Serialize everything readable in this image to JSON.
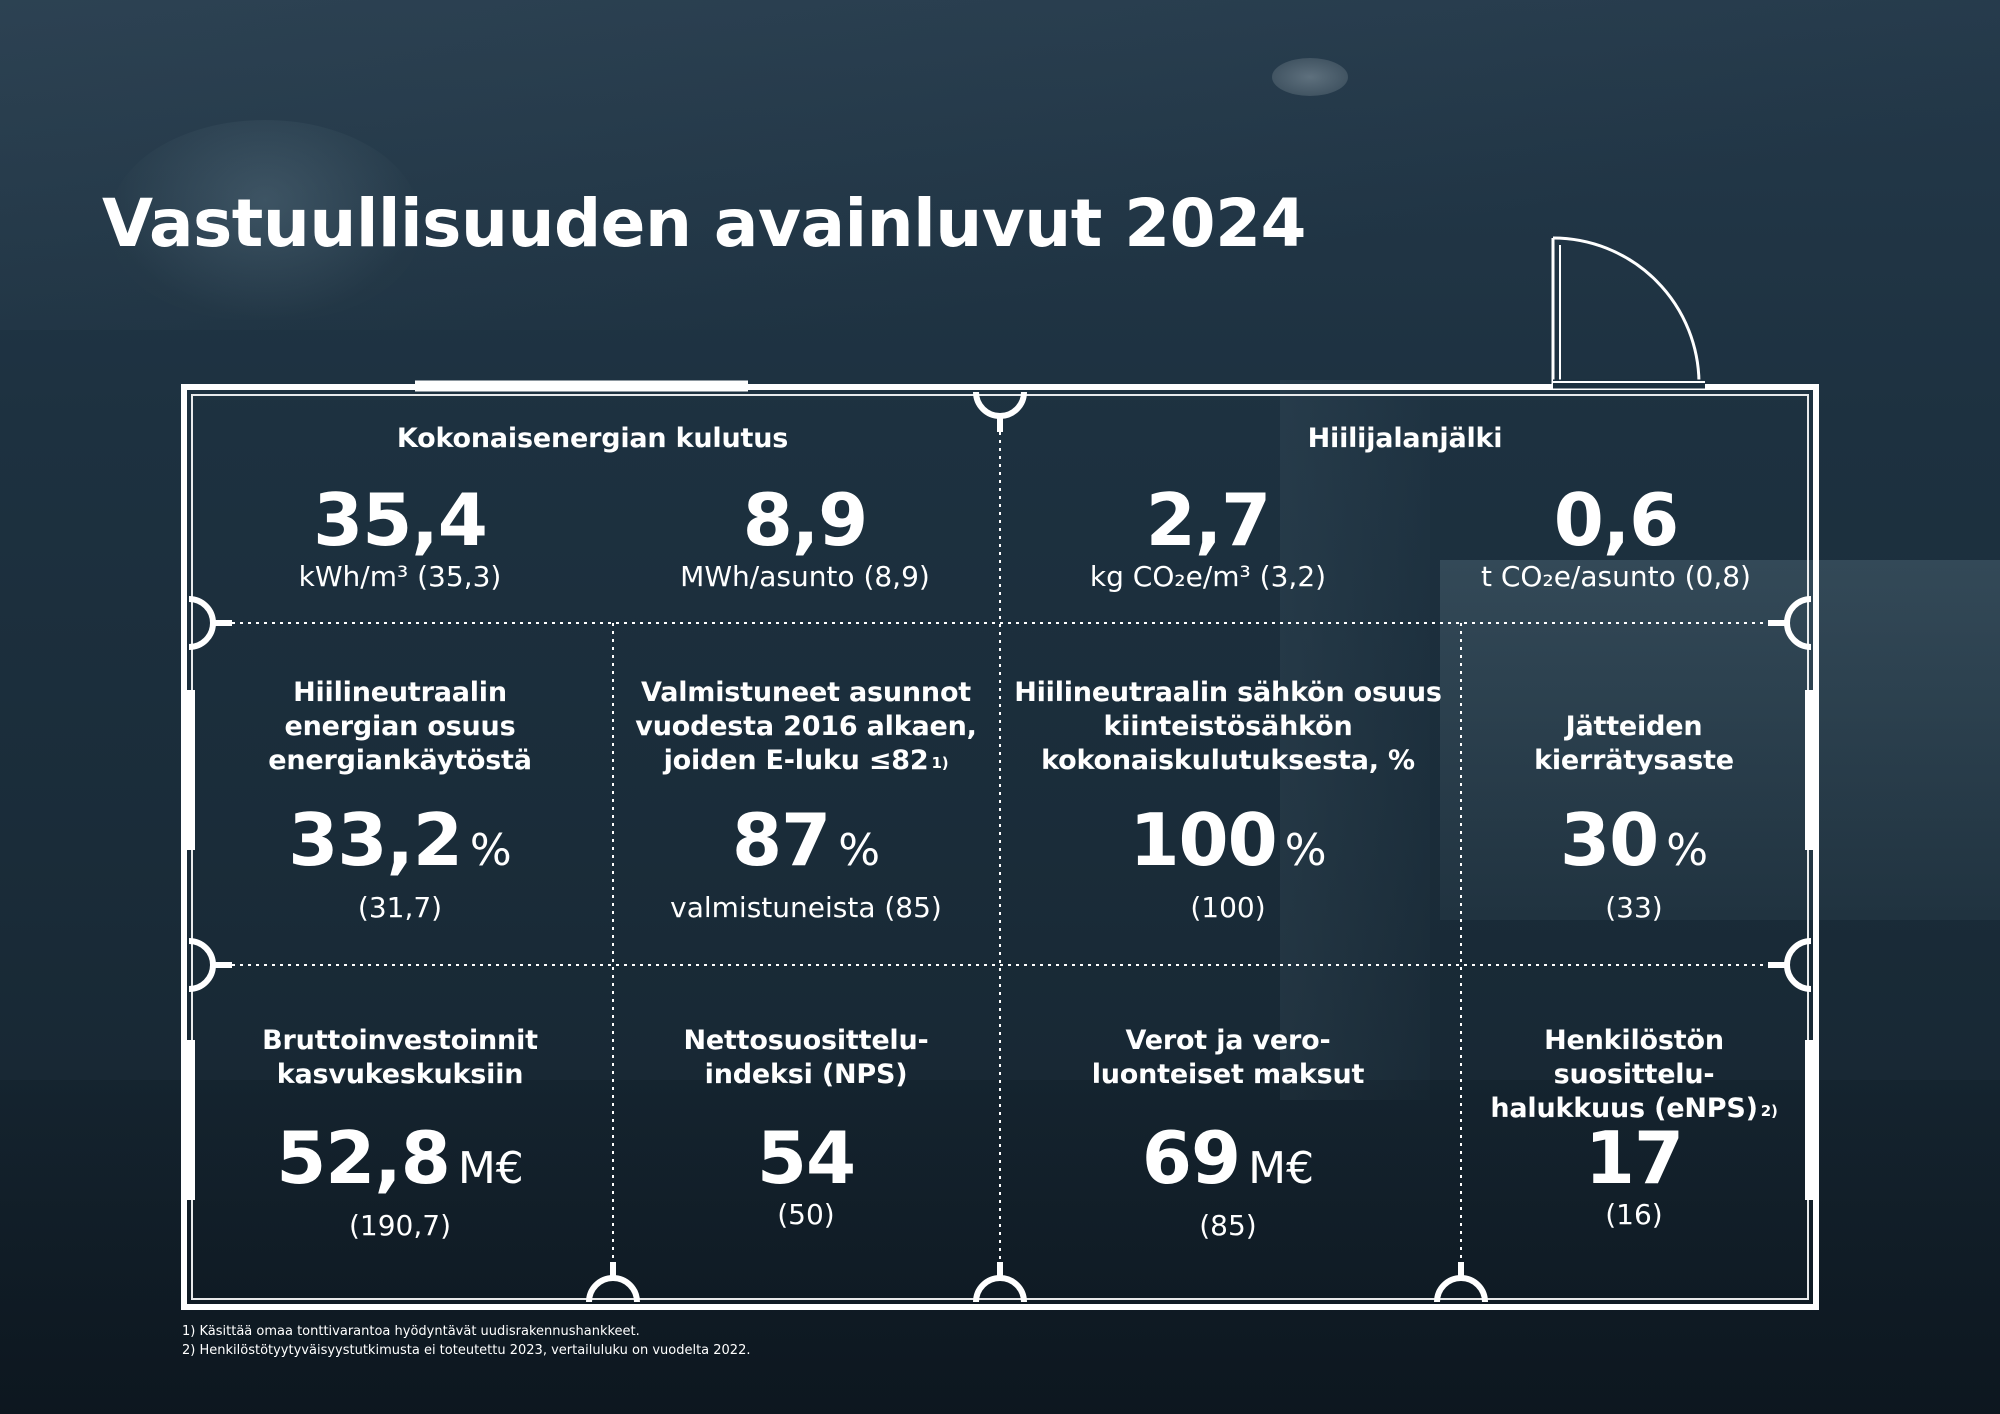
{
  "title": "Vastuullisuuden avainluvut 2024",
  "sections": {
    "energy": "Kokonaisenergian kulutus",
    "carbon": "Hiilijalanjälki"
  },
  "top": [
    {
      "value": "35,4",
      "sub": "kWh/m³ (35,3)"
    },
    {
      "value": "8,9",
      "sub": "MWh/asunto (8,9)"
    },
    {
      "value": "2,7",
      "sub": "kg CO₂e/m³ (3,2)"
    },
    {
      "value": "0,6",
      "sub": "t CO₂e/asunto (0,8)"
    }
  ],
  "middle": [
    {
      "label": [
        "Hiilineutraalin",
        "energian osuus",
        "energiankäytöstä"
      ],
      "value": "33,2",
      "unit": "%",
      "sub": "(31,7)"
    },
    {
      "label": [
        "Valmistuneet asunnot",
        "vuodesta 2016 alkaen,",
        "joiden E-luku ≤82"
      ],
      "note": "1)",
      "value": "87",
      "unit": "%",
      "sub": "valmistuneista (85)"
    },
    {
      "label": [
        "Hiilineutraalin sähkön osuus",
        "kiinteistösähkön",
        "kokonaiskulutuksesta, %"
      ],
      "value": "100",
      "unit": "%",
      "sub": "(100)"
    },
    {
      "label": [
        "Jätteiden",
        "kierrätysaste"
      ],
      "value": "30",
      "unit": "%",
      "sub": "(33)"
    }
  ],
  "bottom": [
    {
      "label": [
        "Bruttoinvestoinnit",
        "kasvukeskuksiin"
      ],
      "value": "52,8",
      "unit": "M€",
      "sub": "(190,7)"
    },
    {
      "label": [
        "Nettosuosittelu-",
        "indeksi (NPS)"
      ],
      "value": "54",
      "unit": "",
      "sub": "(50)"
    },
    {
      "label": [
        "Verot ja vero-",
        "luonteiset maksut"
      ],
      "value": "69",
      "unit": "M€",
      "sub": "(85)"
    },
    {
      "label": [
        "Henkilöstön suosittelu-",
        "halukkuus (eNPS)"
      ],
      "note": "2)",
      "value": "17",
      "unit": "",
      "sub": "(16)"
    }
  ],
  "footnotes": [
    "1)   Käsittää omaa tonttivarantoa hyödyntävät uudisrakennushankkeet.",
    "2)   Henkilöstötyytyväisyystutkimusta ei toteutettu 2023, vertailuluku on vuodelta 2022."
  ],
  "colors": {
    "background": "#1d3140",
    "line": "#ffffff"
  }
}
